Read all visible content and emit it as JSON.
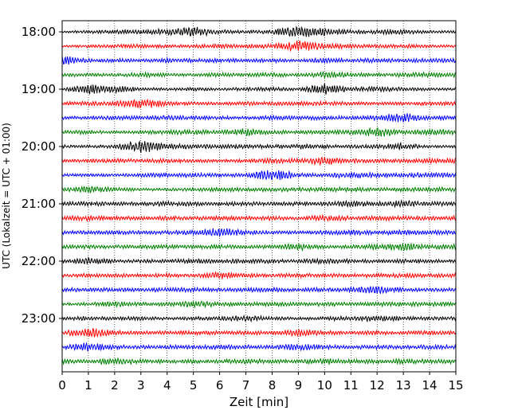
{
  "chart_data": {
    "type": "line",
    "title": "",
    "xlabel": "Zeit  [min]",
    "ylabel": "UTC (Lokalzeit = UTC + 01:00)",
    "xlim": [
      0,
      15
    ],
    "x_ticks": [
      "0",
      "1",
      "2",
      "3",
      "4",
      "5",
      "6",
      "7",
      "8",
      "9",
      "10",
      "11",
      "12",
      "13",
      "14",
      "15"
    ],
    "y_ticks": [
      "18:00",
      "19:00",
      "20:00",
      "21:00",
      "22:00",
      "23:00"
    ],
    "grid": "vertical dotted",
    "trace_colors": [
      "#000000",
      "#ff0000",
      "#0000ff",
      "#008000"
    ],
    "series": [
      {
        "values": [
          0.12,
          0.22,
          0.28,
          0.35,
          0.42,
          0.75,
          0.3,
          0.2,
          0.35,
          0.85,
          0.6,
          0.25,
          0.3,
          0.4,
          0.2
        ]
      },
      {
        "values": [
          0.15,
          0.2,
          0.25,
          0.3,
          0.2,
          0.25,
          0.35,
          0.3,
          0.3,
          0.85,
          0.4,
          0.3,
          0.25,
          0.3,
          0.2
        ]
      },
      {
        "values": [
          0.7,
          0.25,
          0.3,
          0.2,
          0.35,
          0.25,
          0.3,
          0.25,
          0.3,
          0.2,
          0.35,
          0.25,
          0.3,
          0.25,
          0.3
        ]
      },
      {
        "values": [
          0.3,
          0.25,
          0.2,
          0.35,
          0.25,
          0.2,
          0.3,
          0.25,
          0.3,
          0.25,
          0.45,
          0.35,
          0.25,
          0.3,
          0.35
        ]
      },
      {
        "values": [
          0.2,
          0.65,
          0.55,
          0.25,
          0.2,
          0.25,
          0.2,
          0.25,
          0.3,
          0.2,
          0.8,
          0.3,
          0.35,
          0.25,
          0.2
        ]
      },
      {
        "values": [
          0.25,
          0.3,
          0.3,
          0.75,
          0.3,
          0.25,
          0.2,
          0.3,
          0.25,
          0.3,
          0.3,
          0.25,
          0.2,
          0.25,
          0.3
        ]
      },
      {
        "values": [
          0.2,
          0.25,
          0.3,
          0.25,
          0.35,
          0.3,
          0.25,
          0.2,
          0.3,
          0.25,
          0.3,
          0.25,
          0.35,
          0.7,
          0.3
        ]
      },
      {
        "values": [
          0.25,
          0.3,
          0.2,
          0.25,
          0.3,
          0.35,
          0.25,
          0.55,
          0.3,
          0.25,
          0.3,
          0.35,
          0.7,
          0.3,
          0.4
        ]
      },
      {
        "values": [
          0.25,
          0.2,
          0.25,
          0.9,
          0.45,
          0.3,
          0.3,
          0.3,
          0.25,
          0.35,
          0.3,
          0.25,
          0.3,
          0.5,
          0.2
        ]
      },
      {
        "values": [
          0.2,
          0.25,
          0.3,
          0.25,
          0.3,
          0.25,
          0.2,
          0.25,
          0.35,
          0.3,
          0.6,
          0.3,
          0.3,
          0.25,
          0.35
        ]
      },
      {
        "values": [
          0.2,
          0.25,
          0.2,
          0.3,
          0.35,
          0.3,
          0.25,
          0.25,
          0.85,
          0.3,
          0.3,
          0.45,
          0.35,
          0.3,
          0.35
        ]
      },
      {
        "values": [
          0.25,
          0.55,
          0.3,
          0.2,
          0.2,
          0.25,
          0.3,
          0.25,
          0.3,
          0.3,
          0.3,
          0.35,
          0.3,
          0.3,
          0.3
        ]
      },
      {
        "values": [
          0.3,
          0.3,
          0.25,
          0.25,
          0.35,
          0.3,
          0.25,
          0.3,
          0.25,
          0.3,
          0.3,
          0.45,
          0.3,
          0.5,
          0.3
        ]
      },
      {
        "values": [
          0.25,
          0.4,
          0.3,
          0.25,
          0.3,
          0.25,
          0.3,
          0.3,
          0.3,
          0.25,
          0.45,
          0.3,
          0.35,
          0.3,
          0.3
        ]
      },
      {
        "values": [
          0.25,
          0.25,
          0.3,
          0.25,
          0.25,
          0.35,
          0.7,
          0.3,
          0.25,
          0.25,
          0.3,
          0.4,
          0.3,
          0.35,
          0.3
        ]
      },
      {
        "values": [
          0.25,
          0.3,
          0.25,
          0.25,
          0.3,
          0.25,
          0.3,
          0.25,
          0.3,
          0.5,
          0.25,
          0.3,
          0.4,
          0.55,
          0.35
        ]
      },
      {
        "values": [
          0.25,
          0.5,
          0.25,
          0.25,
          0.25,
          0.35,
          0.3,
          0.3,
          0.3,
          0.25,
          0.45,
          0.3,
          0.25,
          0.3,
          0.25
        ]
      },
      {
        "values": [
          0.25,
          0.3,
          0.25,
          0.25,
          0.3,
          0.25,
          0.55,
          0.3,
          0.25,
          0.3,
          0.3,
          0.25,
          0.3,
          0.3,
          0.3
        ]
      },
      {
        "values": [
          0.3,
          0.25,
          0.3,
          0.25,
          0.3,
          0.35,
          0.25,
          0.3,
          0.3,
          0.25,
          0.3,
          0.35,
          0.6,
          0.3,
          0.25
        ]
      },
      {
        "values": [
          0.2,
          0.25,
          0.45,
          0.25,
          0.3,
          0.45,
          0.3,
          0.25,
          0.3,
          0.25,
          0.3,
          0.25,
          0.3,
          0.3,
          0.3
        ]
      },
      {
        "values": [
          0.25,
          0.3,
          0.25,
          0.3,
          0.2,
          0.25,
          0.3,
          0.45,
          0.25,
          0.2,
          0.3,
          0.3,
          0.45,
          0.3,
          0.25
        ]
      },
      {
        "values": [
          0.25,
          0.75,
          0.3,
          0.25,
          0.25,
          0.3,
          0.25,
          0.3,
          0.25,
          0.55,
          0.3,
          0.25,
          0.3,
          0.25,
          0.3
        ]
      },
      {
        "values": [
          0.25,
          0.65,
          0.3,
          0.25,
          0.3,
          0.25,
          0.35,
          0.3,
          0.25,
          0.5,
          0.3,
          0.25,
          0.3,
          0.25,
          0.3
        ]
      },
      {
        "values": [
          0.35,
          0.25,
          0.5,
          0.3,
          0.25,
          0.3,
          0.25,
          0.4,
          0.3,
          0.25,
          0.45,
          0.3,
          0.3,
          0.4,
          0.3
        ]
      }
    ]
  }
}
